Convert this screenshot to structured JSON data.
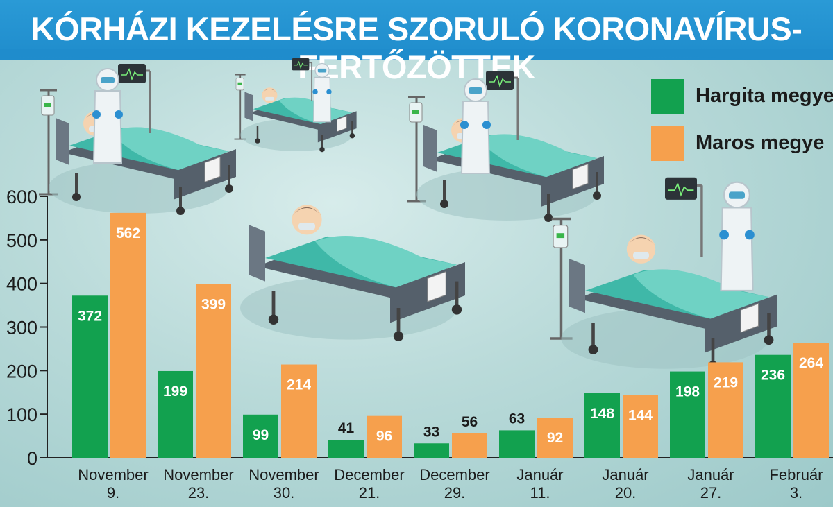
{
  "title": "KÓRHÁZI KEZELÉSRE SZORULÓ KORONAVÍRUS-FERTŐZÖTTEK",
  "colors": {
    "hargita": "#12a14f",
    "maros": "#f6a04d",
    "header": "#2295d2",
    "axis": "#222222"
  },
  "chart_data": {
    "type": "bar",
    "title": "KÓRHÁZI KEZELÉSRE SZORULÓ KORONAVÍRUS-FERTŐZÖTTEK",
    "categories": [
      [
        "November",
        "9."
      ],
      [
        "November",
        "23."
      ],
      [
        "November",
        "30."
      ],
      [
        "December",
        "21."
      ],
      [
        "December",
        "29."
      ],
      [
        "Január",
        "11."
      ],
      [
        "Január",
        "20."
      ],
      [
        "Január",
        "27."
      ],
      [
        "Február",
        "3."
      ]
    ],
    "series": [
      {
        "name": "Hargita megye",
        "values": [
          372,
          199,
          99,
          41,
          33,
          63,
          148,
          198,
          236
        ]
      },
      {
        "name": "Maros megye",
        "values": [
          562,
          399,
          214,
          96,
          56,
          92,
          144,
          219,
          264
        ]
      }
    ],
    "ylim": [
      0,
      600
    ],
    "yticks": [
      0,
      100,
      200,
      300,
      400,
      500,
      600
    ],
    "grid": false,
    "legend_position": "top-right"
  },
  "illustration": {
    "description_icons": [
      "hospital-bed-icon",
      "patient-icon",
      "nurse-icon",
      "heart-monitor-icon",
      "iv-drip-icon"
    ]
  }
}
